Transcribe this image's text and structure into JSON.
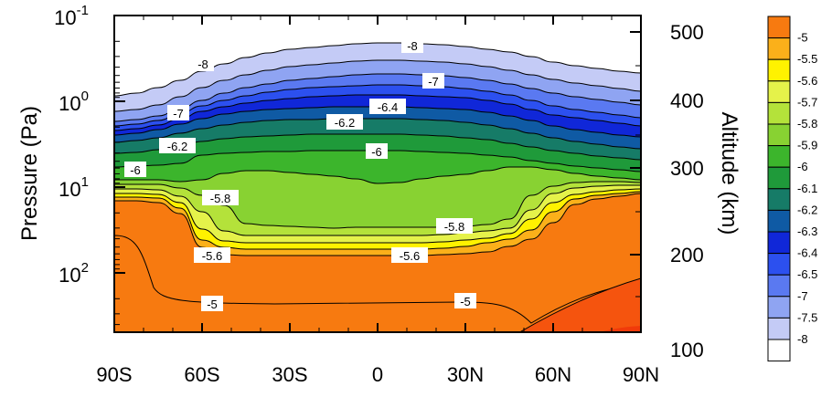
{
  "chart_data": {
    "type": "heatmap",
    "subtype": "filled-contour latitude-pressure cross-section",
    "title": "",
    "xlabel": "",
    "ylabel_left": "Pressure (Pa)",
    "ylabel_right": "Altitude (km)",
    "x_ticks": [
      "90S",
      "60S",
      "30S",
      "0",
      "30N",
      "60N",
      "90N"
    ],
    "y_left_scale": "log",
    "y_left_ticks": [
      {
        "value": 0.1,
        "mantissa": "10",
        "exponent": "-1"
      },
      {
        "value": 1,
        "mantissa": "10",
        "exponent": "0"
      },
      {
        "value": 10,
        "mantissa": "10",
        "exponent": "1"
      },
      {
        "value": 100,
        "mantissa": "10",
        "exponent": "2"
      }
    ],
    "y_right_ticks": [
      "500",
      "400",
      "300",
      "200",
      "100"
    ],
    "ylim_left_pa": [
      0.1,
      350
    ],
    "colorbar": {
      "levels": [
        "-5",
        "-5.5",
        "-5.6",
        "-5.7",
        "-5.8",
        "-5.9",
        "-6",
        "-6.1",
        "-6.2",
        "-6.3",
        "-6.4",
        "-6.5",
        "-7",
        "-7.5",
        "-8"
      ],
      "colors": [
        "#f77a10",
        "#fbb01a",
        "#fff200",
        "#e5f24a",
        "#b4e23a",
        "#88d232",
        "#3cb52c",
        "#1f9a3a",
        "#167b67",
        "#0f5aa4",
        "#1027d8",
        "#2c50ef",
        "#5a79f1",
        "#8fa4f2",
        "#c4cbf6",
        "#ffffff"
      ]
    },
    "fields": [
      {
        "band": "< -8",
        "color": "#ffffff"
      },
      {
        "band": "-8 to -7.5",
        "color": "#c4cbf6"
      },
      {
        "band": "-7.5 to -7",
        "color": "#8fa4f2"
      },
      {
        "band": "-7 to -6.5",
        "color": "#5a79f1"
      },
      {
        "band": "-6.5 to -6.4",
        "color": "#2c50ef"
      },
      {
        "band": "-6.4 to -6.3",
        "color": "#1027d8"
      },
      {
        "band": "-6.3 to -6.2",
        "color": "#0f5aa4"
      },
      {
        "band": "-6.2 to -6.1",
        "color": "#167b67"
      },
      {
        "band": "-6.1 to -6",
        "color": "#1f9a3a"
      },
      {
        "band": "-6 to -5.9",
        "color": "#3cb52c"
      },
      {
        "band": "-5.9 to -5.8",
        "color": "#88d232"
      },
      {
        "band": "-5.8 to -5.7",
        "color": "#b4e23a"
      },
      {
        "band": "-5.7 to -5.6",
        "color": "#e5f24a"
      },
      {
        "band": "-5.6 to -5.5",
        "color": "#fff200"
      },
      {
        "band": "-5.5 to -5",
        "color": "#fbb01a"
      },
      {
        "band": "> -5",
        "color": "#f77a10"
      }
    ],
    "contour_labels": [
      "-8",
      "-8",
      "-7",
      "-7",
      "-6.4",
      "-6.2",
      "-6.2",
      "-6",
      "-6",
      "-5.8",
      "-5.8",
      "-5.6",
      "-5.6",
      "-5",
      "-5"
    ]
  }
}
